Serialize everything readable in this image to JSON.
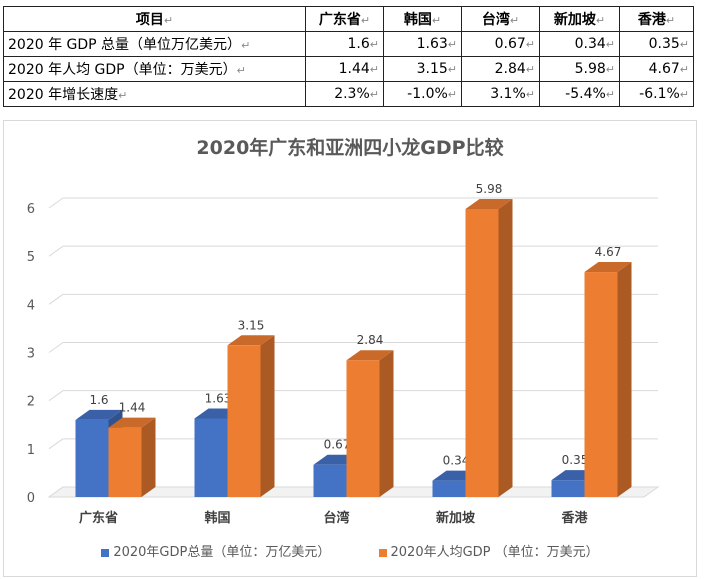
{
  "table": {
    "header": [
      "项目",
      "广东省",
      "韩国",
      "台湾",
      "新加坡",
      "香港"
    ],
    "rows": [
      {
        "label": "2020 年 GDP 总量（单位万亿美元）",
        "values": [
          "1.6",
          "1.63",
          "0.67",
          "0.34",
          "0.35"
        ]
      },
      {
        "label": "2020 年人均 GDP（单位：万美元）",
        "values": [
          "1.44",
          "3.15",
          "2.84",
          "5.98",
          "4.67"
        ]
      },
      {
        "label": "2020 年增长速度",
        "values": [
          "2.3%",
          "-1.0%",
          "3.1%",
          "-5.4%",
          "-6.1%"
        ]
      }
    ],
    "mark": "↵"
  },
  "chart_data": {
    "type": "bar",
    "title": "2020年广东和亚洲四小龙GDP比较",
    "categories": [
      "广东省",
      "韩国",
      "台湾",
      "新加坡",
      "香港"
    ],
    "series": [
      {
        "name": "2020年GDP总量（单位：万亿美元）",
        "values": [
          1.6,
          1.63,
          0.67,
          0.34,
          0.35
        ],
        "color": "#4472C4"
      },
      {
        "name": "2020年人均GDP （单位：万美元）",
        "values": [
          1.44,
          3.15,
          2.84,
          5.98,
          4.67
        ],
        "color": "#ED7D31"
      }
    ],
    "ylim": [
      0,
      6
    ],
    "yticks": [
      0,
      1,
      2,
      3,
      4,
      5,
      6
    ],
    "grid": true,
    "style": "3d-clustered-column",
    "legend": "bottom"
  }
}
